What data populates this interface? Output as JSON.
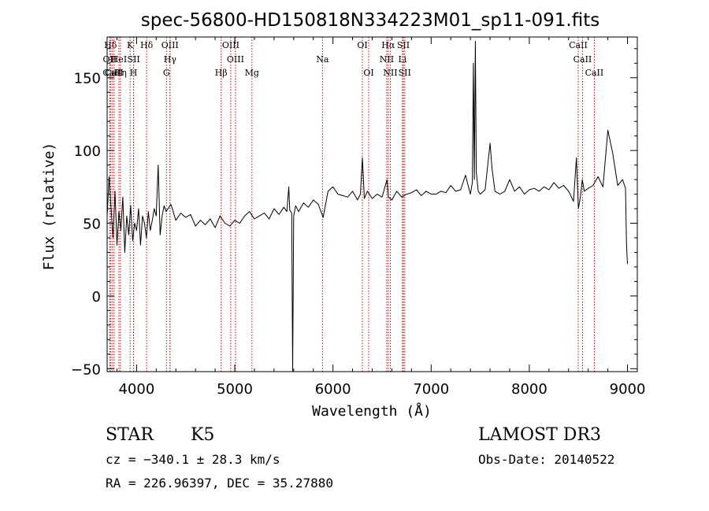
{
  "chart_data": {
    "type": "line",
    "title": "spec-56800-HD150818N334223M01_sp11-091.fits",
    "xlabel": "Wavelength (Å)",
    "ylabel": "Flux (relative)",
    "xlim": [
      3700,
      9100
    ],
    "ylim": [
      -52,
      178
    ],
    "xticks": [
      4000,
      5000,
      6000,
      7000,
      8000,
      9000
    ],
    "yticks": [
      -50,
      0,
      50,
      100,
      150
    ],
    "grid": false,
    "line_color": "#000000",
    "marker_color": "#cc0000",
    "series": [
      {
        "x": [
          3700,
          3720,
          3740,
          3760,
          3780,
          3800,
          3820,
          3840,
          3860,
          3880,
          3900,
          3920,
          3940,
          3960,
          3980,
          4000,
          4020,
          4040,
          4060,
          4080,
          4100,
          4120,
          4140,
          4160,
          4180,
          4200,
          4220,
          4240,
          4260,
          4280,
          4300,
          4350,
          4400,
          4450,
          4500,
          4550,
          4600,
          4650,
          4700,
          4750,
          4800,
          4850,
          4900,
          4950,
          5000,
          5050,
          5100,
          5150,
          5200,
          5250,
          5300,
          5350,
          5400,
          5450,
          5500,
          5530,
          5550,
          5560,
          5580,
          5590,
          5600,
          5620,
          5650,
          5700,
          5750,
          5800,
          5850,
          5900,
          5950,
          6000,
          6050,
          6100,
          6150,
          6200,
          6250,
          6280,
          6300,
          6320,
          6350,
          6400,
          6450,
          6500,
          6550,
          6565,
          6600,
          6650,
          6700,
          6750,
          6800,
          6850,
          6900,
          6950,
          7000,
          7050,
          7100,
          7150,
          7200,
          7250,
          7300,
          7350,
          7400,
          7420,
          7430,
          7440,
          7450,
          7460,
          7480,
          7500,
          7550,
          7600,
          7620,
          7650,
          7700,
          7750,
          7800,
          7850,
          7900,
          7950,
          8000,
          8050,
          8100,
          8150,
          8200,
          8250,
          8300,
          8350,
          8400,
          8450,
          8480,
          8500,
          8520,
          8540,
          8560,
          8600,
          8650,
          8700,
          8750,
          8800,
          8850,
          8900,
          8950,
          8980,
          8990,
          9000
        ],
        "y": [
          55,
          82,
          60,
          40,
          72,
          35,
          58,
          45,
          68,
          30,
          55,
          42,
          62,
          38,
          50,
          45,
          60,
          35,
          55,
          50,
          40,
          58,
          45,
          52,
          60,
          55,
          90,
          42,
          55,
          62,
          58,
          63,
          52,
          57,
          54,
          56,
          48,
          52,
          49,
          53,
          47,
          55,
          50,
          48,
          52,
          50,
          55,
          58,
          53,
          55,
          57,
          53,
          60,
          56,
          61,
          58,
          75,
          59,
          57,
          -52,
          55,
          62,
          58,
          64,
          61,
          66,
          63,
          54,
          72,
          75,
          70,
          69,
          68,
          72,
          66,
          70,
          95,
          67,
          72,
          67,
          70,
          68,
          80,
          68,
          66,
          72,
          68,
          70,
          71,
          73,
          69,
          72,
          70,
          70,
          72,
          71,
          76,
          72,
          73,
          83,
          70,
          78,
          160,
          80,
          175,
          85,
          72,
          70,
          73,
          105,
          88,
          72,
          70,
          72,
          80,
          72,
          75,
          70,
          73,
          74,
          72,
          75,
          73,
          78,
          74,
          76,
          72,
          65,
          95,
          60,
          68,
          80,
          72,
          74,
          76,
          82,
          75,
          114,
          98,
          76,
          80,
          74,
          35,
          22
        ]
      }
    ],
    "lines": [
      {
        "label": "Hδ",
        "x": 3734,
        "row": 0
      },
      {
        "label": "CaII",
        "x": 3750,
        "row": 2
      },
      {
        "label": "OII",
        "x": 3727,
        "row": 1
      },
      {
        "label": "CaII",
        "x": 3770,
        "row": 2
      },
      {
        "label": "Hη",
        "x": 3835,
        "row": 2
      },
      {
        "label": "HeI",
        "x": 3820,
        "row": 1
      },
      {
        "label": "K",
        "x": 3934,
        "row": 0
      },
      {
        "label": "SII",
        "x": 3970,
        "row": 1
      },
      {
        "label": "H",
        "x": 3969,
        "row": 2
      },
      {
        "label": "Hδ",
        "x": 4102,
        "row": 0
      },
      {
        "label": "OIII",
        "x": 4340,
        "row": 0
      },
      {
        "label": "Hγ",
        "x": 4341,
        "row": 1
      },
      {
        "label": "G",
        "x": 4304,
        "row": 2
      },
      {
        "label": "OIII",
        "x": 4959,
        "row": 0
      },
      {
        "label": "OIII",
        "x": 5007,
        "row": 1
      },
      {
        "label": "Hβ",
        "x": 4861,
        "row": 2
      },
      {
        "label": "Mg",
        "x": 5175,
        "row": 2
      },
      {
        "label": "Na",
        "x": 5893,
        "row": 1
      },
      {
        "label": "OI",
        "x": 6300,
        "row": 0
      },
      {
        "label": "OI",
        "x": 6364,
        "row": 2
      },
      {
        "label": "Hα",
        "x": 6563,
        "row": 0
      },
      {
        "label": "NII",
        "x": 6548,
        "row": 1
      },
      {
        "label": "NII",
        "x": 6584,
        "row": 2
      },
      {
        "label": "SII",
        "x": 6717,
        "row": 0
      },
      {
        "label": "Li",
        "x": 6708,
        "row": 1
      },
      {
        "label": "SII",
        "x": 6731,
        "row": 2
      },
      {
        "label": "CaII",
        "x": 8498,
        "row": 0
      },
      {
        "label": "CaII",
        "x": 8542,
        "row": 1
      },
      {
        "label": "CaII",
        "x": 8662,
        "row": 2
      }
    ]
  },
  "info": {
    "object_class": "STAR",
    "subclass": "K5",
    "survey": "LAMOST DR3",
    "cz": "cz = −340.1 ± 28.3 km/s",
    "obs_date": "Obs-Date: 20140522",
    "coords": "RA = 226.96397, DEC =  35.27880"
  }
}
